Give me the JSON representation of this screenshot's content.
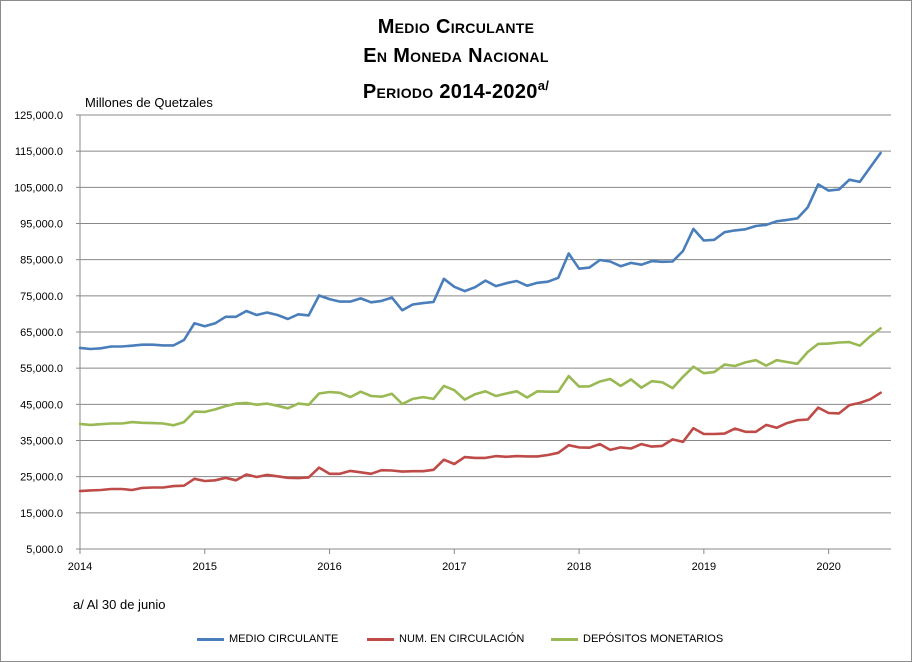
{
  "title": {
    "line1": "Medio Circulante",
    "line2": "En Moneda Nacional",
    "line3": "Periodo 2014-2020",
    "line3_sup": "a/"
  },
  "footnote": "a/ Al 30 de junio",
  "chart_data": {
    "type": "line",
    "ylabel": "Millones de Quetzales",
    "ylim": [
      5000,
      125000
    ],
    "yticks": [
      5000,
      15000,
      25000,
      35000,
      45000,
      55000,
      65000,
      75000,
      85000,
      95000,
      105000,
      115000,
      125000
    ],
    "ytick_labels": [
      "5,000.0",
      "15,000.0",
      "25,000.0",
      "35,000.0",
      "45,000.0",
      "55,000.0",
      "65,000.0",
      "75,000.0",
      "85,000.0",
      "95,000.0",
      "105,000.0",
      "115,000.0",
      "125,000.0"
    ],
    "xlim": [
      2014,
      2020.5
    ],
    "xticks": [
      2014,
      2015,
      2016,
      2017,
      2018,
      2019,
      2020
    ],
    "xtick_labels": [
      "2014",
      "2015",
      "2016",
      "2017",
      "2018",
      "2019",
      "2020"
    ],
    "grid": "horizontal",
    "legend_position": "bottom",
    "x_start": 2014,
    "x_step": 0.08333,
    "series": [
      {
        "name": "MEDIO CIRCULANTE",
        "color": "#4a7ebb",
        "values": [
          60600,
          60300,
          60500,
          61000,
          61000,
          61200,
          61500,
          61500,
          61300,
          61300,
          62800,
          67400,
          66600,
          67400,
          69200,
          69200,
          70800,
          69700,
          70400,
          69700,
          68600,
          69900,
          69600,
          75100,
          74100,
          73400,
          73400,
          74300,
          73200,
          73600,
          74500,
          71000,
          72600,
          73000,
          73300,
          79700,
          77500,
          76300,
          77400,
          79200,
          77700,
          78500,
          79100,
          77800,
          78600,
          78900,
          80000,
          86700,
          82500,
          82800,
          84900,
          84500,
          83200,
          84100,
          83600,
          84600,
          84400,
          84500,
          87400,
          93500,
          90300,
          90500,
          92600,
          93100,
          93400,
          94300,
          94600,
          95600,
          96000,
          96400,
          99500,
          105800,
          104100,
          104400,
          107100,
          106500,
          110500,
          114500
        ]
      },
      {
        "name": "NUM. EN CIRCULACIÓN",
        "color": "#be4b48",
        "values": [
          21000,
          21200,
          21300,
          21600,
          21600,
          21300,
          21900,
          22000,
          22000,
          22400,
          22500,
          24400,
          23800,
          24000,
          24700,
          24000,
          25600,
          24900,
          25500,
          25100,
          24700,
          24600,
          24800,
          27500,
          25800,
          25800,
          26600,
          26200,
          25800,
          26800,
          26700,
          26400,
          26500,
          26500,
          26900,
          29700,
          28500,
          30400,
          30200,
          30200,
          30700,
          30500,
          30700,
          30600,
          30600,
          31000,
          31600,
          33700,
          33100,
          33000,
          34000,
          32400,
          33100,
          32800,
          34000,
          33300,
          33500,
          35300,
          34600,
          38400,
          36800,
          36800,
          36900,
          38300,
          37400,
          37400,
          39300,
          38500,
          39800,
          40600,
          40800,
          44100,
          42600,
          42500,
          44800,
          45400,
          46400,
          48200
        ]
      },
      {
        "name": "DEPÓSITOS MONETARIOS",
        "color": "#98b954",
        "values": [
          39600,
          39300,
          39500,
          39700,
          39700,
          40100,
          39900,
          39800,
          39700,
          39200,
          40100,
          43000,
          42900,
          43600,
          44500,
          45200,
          45400,
          44900,
          45200,
          44600,
          43900,
          45200,
          44900,
          48000,
          48400,
          48200,
          47000,
          48500,
          47300,
          47100,
          47900,
          45100,
          46500,
          47000,
          46500,
          50100,
          48900,
          46300,
          47800,
          48600,
          47300,
          48000,
          48600,
          46900,
          48600,
          48500,
          48500,
          52800,
          49900,
          50000,
          51300,
          52000,
          50100,
          51900,
          49600,
          51400,
          51100,
          49500,
          52600,
          55400,
          53600,
          53900,
          56000,
          55600,
          56600,
          57200,
          55700,
          57200,
          56700,
          56200,
          59500,
          61700,
          61800,
          62100,
          62200,
          61200,
          63800,
          66000
        ]
      }
    ]
  }
}
